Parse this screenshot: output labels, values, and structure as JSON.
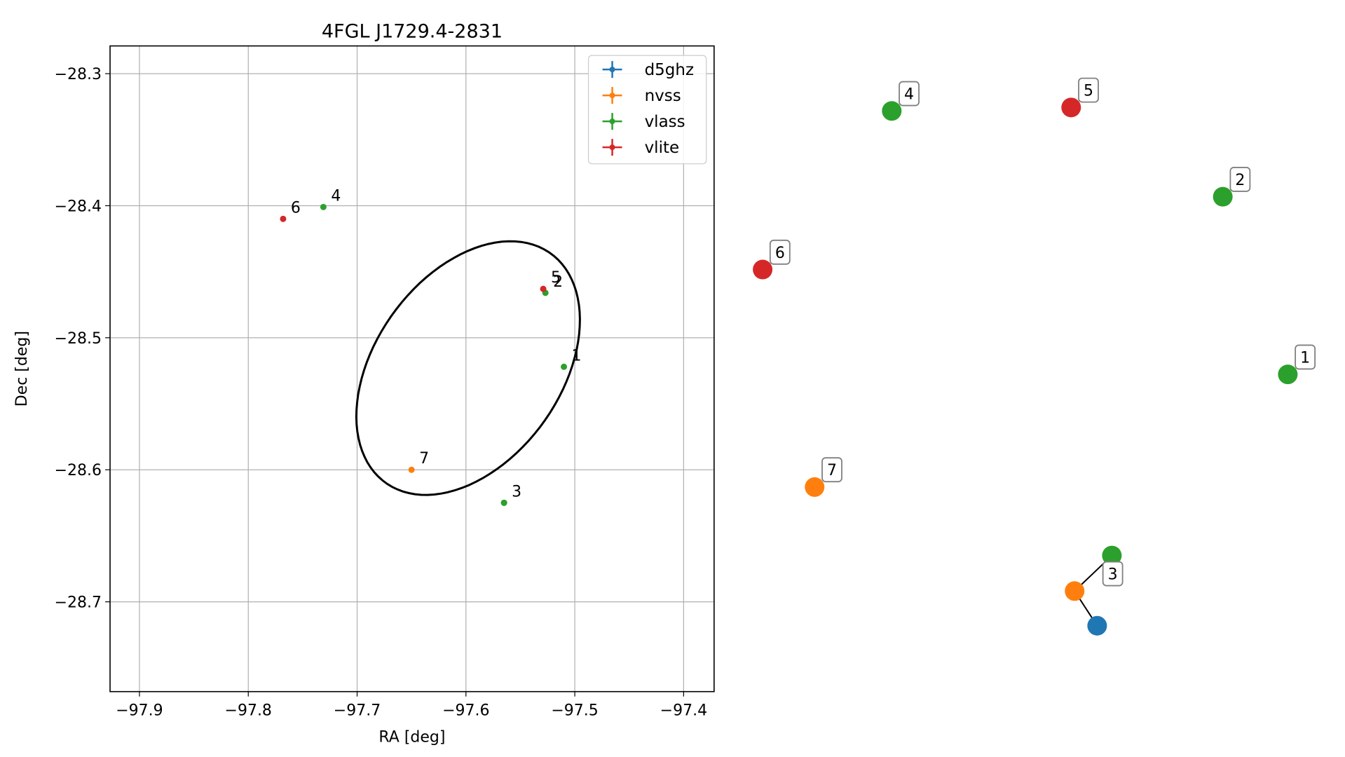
{
  "chart_data": [
    {
      "type": "scatter",
      "title": "4FGL J1729.4-2831",
      "xlabel": "RA [deg]",
      "ylabel": "Dec [deg]",
      "xlim": [
        -97.927,
        -97.372
      ],
      "ylim": [
        -28.768,
        -28.279
      ],
      "xticks": [
        -97.9,
        -97.8,
        -97.7,
        -97.6,
        -97.5,
        -97.4
      ],
      "xtick_labels": [
        "−97.9",
        "−97.8",
        "−97.7",
        "−97.6",
        "−97.5",
        "−97.4"
      ],
      "yticks": [
        -28.3,
        -28.4,
        -28.5,
        -28.6,
        -28.7
      ],
      "ytick_labels": [
        "−28.3",
        "−28.4",
        "−28.5",
        "−28.6",
        "−28.7"
      ],
      "grid": true,
      "legend_position": "upper right",
      "series": [
        {
          "name": "d5ghz",
          "color": "#1f77b4",
          "points": [
            {
              "ra": -97.565,
              "dec": -28.625,
              "label": ""
            }
          ]
        },
        {
          "name": "nvss",
          "color": "#ff7f0e",
          "points": [
            {
              "ra": -97.65,
              "dec": -28.6,
              "label": "7"
            }
          ]
        },
        {
          "name": "vlass",
          "color": "#2ca02c",
          "points": [
            {
              "ra": -97.51,
              "dec": -28.522,
              "label": "1"
            },
            {
              "ra": -97.527,
              "dec": -28.466,
              "label": "2"
            },
            {
              "ra": -97.565,
              "dec": -28.625,
              "label": "3"
            },
            {
              "ra": -97.731,
              "dec": -28.401,
              "label": "4"
            }
          ]
        },
        {
          "name": "vlite",
          "color": "#d62728",
          "points": [
            {
              "ra": -97.529,
              "dec": -28.463,
              "label": "5"
            },
            {
              "ra": -97.768,
              "dec": -28.41,
              "label": "6"
            }
          ]
        }
      ],
      "ellipse": {
        "center_ra": -97.598,
        "center_dec": -28.523,
        "a": 0.117,
        "b": 0.078,
        "angle_deg": 40,
        "color": "#000000"
      }
    },
    {
      "type": "graph",
      "nodes": [
        {
          "id": "1",
          "color": "#2ca02c",
          "label": "1"
        },
        {
          "id": "2",
          "color": "#2ca02c",
          "label": "2"
        },
        {
          "id": "3g",
          "color": "#2ca02c",
          "label": ""
        },
        {
          "id": "3n",
          "color": "#ff7f0e",
          "label": "3"
        },
        {
          "id": "3d",
          "color": "#1f77b4",
          "label": ""
        },
        {
          "id": "4",
          "color": "#2ca02c",
          "label": "4"
        },
        {
          "id": "5",
          "color": "#d62728",
          "label": "5"
        },
        {
          "id": "6",
          "color": "#d62728",
          "label": "6"
        },
        {
          "id": "7",
          "color": "#ff7f0e",
          "label": "7"
        }
      ],
      "edges": [
        [
          "3n",
          "3g"
        ],
        [
          "3n",
          "3d"
        ]
      ]
    }
  ]
}
